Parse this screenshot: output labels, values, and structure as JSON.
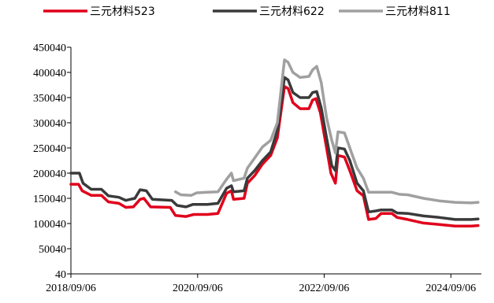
{
  "chart_data": {
    "type": "line",
    "title": "",
    "xlabel": "",
    "ylabel": "",
    "legend_position": "top",
    "grid": false,
    "ylim": [
      40,
      450040
    ],
    "yticks": [
      "40",
      "50040",
      "100040",
      "150040",
      "200040",
      "250040",
      "300040",
      "350040",
      "400040",
      "450040"
    ],
    "xlim": [
      "2018/09/06",
      "2025/03/01"
    ],
    "xticks": [
      "2018/09/06",
      "2020/09/06",
      "2022/09/06",
      "2024/09/06"
    ],
    "series": [
      {
        "name": "三元材料523",
        "color": "#e0001b",
        "points": [
          [
            "2018/09/06",
            178000
          ],
          [
            "2018/10/20",
            178000
          ],
          [
            "2018/11/10",
            165000
          ],
          [
            "2019/01/01",
            156000
          ],
          [
            "2019/03/01",
            156000
          ],
          [
            "2019/04/10",
            143000
          ],
          [
            "2019/06/10",
            140000
          ],
          [
            "2019/07/20",
            132000
          ],
          [
            "2019/09/01",
            133000
          ],
          [
            "2019/10/10",
            148000
          ],
          [
            "2019/11/01",
            150000
          ],
          [
            "2019/12/10",
            133000
          ],
          [
            "2020/04/01",
            132000
          ],
          [
            "2020/05/01",
            116000
          ],
          [
            "2020/07/01",
            114000
          ],
          [
            "2020/08/15",
            118000
          ],
          [
            "2020/11/01",
            118000
          ],
          [
            "2021/01/01",
            120000
          ],
          [
            "2021/02/20",
            160000
          ],
          [
            "2021/03/20",
            165000
          ],
          [
            "2021/04/01",
            148000
          ],
          [
            "2021/06/01",
            150000
          ],
          [
            "2021/06/20",
            180000
          ],
          [
            "2021/08/01",
            195000
          ],
          [
            "2021/09/15",
            218000
          ],
          [
            "2021/11/01",
            235000
          ],
          [
            "2021/12/10",
            270000
          ],
          [
            "2022/01/20",
            372000
          ],
          [
            "2022/02/10",
            368000
          ],
          [
            "2022/03/10",
            340000
          ],
          [
            "2022/04/20",
            328000
          ],
          [
            "2022/06/10",
            328000
          ],
          [
            "2022/07/01",
            345000
          ],
          [
            "2022/07/20",
            348000
          ],
          [
            "2022/08/15",
            320000
          ],
          [
            "2022/09/20",
            250000
          ],
          [
            "2022/10/15",
            200000
          ],
          [
            "2022/11/10",
            180000
          ],
          [
            "2022/11/25",
            235000
          ],
          [
            "2023/01/01",
            232000
          ],
          [
            "2023/02/01",
            205000
          ],
          [
            "2023/03/15",
            165000
          ],
          [
            "2023/04/20",
            155000
          ],
          [
            "2023/05/20",
            108000
          ],
          [
            "2023/07/01",
            110000
          ],
          [
            "2023/08/01",
            120000
          ],
          [
            "2023/10/01",
            120000
          ],
          [
            "2023/11/01",
            112000
          ],
          [
            "2024/01/01",
            108000
          ],
          [
            "2024/04/01",
            101000
          ],
          [
            "2024/07/01",
            98000
          ],
          [
            "2024/10/01",
            95000
          ],
          [
            "2025/01/01",
            95000
          ],
          [
            "2025/02/10",
            96000
          ]
        ]
      },
      {
        "name": "三元材料622",
        "color": "#3a3a3a",
        "points": [
          [
            "2018/09/06",
            200000
          ],
          [
            "2018/10/25",
            200000
          ],
          [
            "2018/11/15",
            180000
          ],
          [
            "2019/01/01",
            168000
          ],
          [
            "2019/03/01",
            168000
          ],
          [
            "2019/04/10",
            155000
          ],
          [
            "2019/06/10",
            152000
          ],
          [
            "2019/07/20",
            146000
          ],
          [
            "2019/09/10",
            150000
          ],
          [
            "2019/10/10",
            167000
          ],
          [
            "2019/11/15",
            165000
          ],
          [
            "2019/12/20",
            148000
          ],
          [
            "2020/04/10",
            146000
          ],
          [
            "2020/05/10",
            136000
          ],
          [
            "2020/07/01",
            133000
          ],
          [
            "2020/08/10",
            138000
          ],
          [
            "2020/11/01",
            138000
          ],
          [
            "2021/01/01",
            140000
          ],
          [
            "2021/02/20",
            170000
          ],
          [
            "2021/03/20",
            175000
          ],
          [
            "2021/04/01",
            163000
          ],
          [
            "2021/06/01",
            165000
          ],
          [
            "2021/06/20",
            190000
          ],
          [
            "2021/08/01",
            205000
          ],
          [
            "2021/09/15",
            225000
          ],
          [
            "2021/11/01",
            242000
          ],
          [
            "2021/12/10",
            285000
          ],
          [
            "2022/01/20",
            390000
          ],
          [
            "2022/02/10",
            385000
          ],
          [
            "2022/03/10",
            360000
          ],
          [
            "2022/04/20",
            350000
          ],
          [
            "2022/06/10",
            350000
          ],
          [
            "2022/07/01",
            360000
          ],
          [
            "2022/07/25",
            362000
          ],
          [
            "2022/08/20",
            330000
          ],
          [
            "2022/09/20",
            270000
          ],
          [
            "2022/10/20",
            215000
          ],
          [
            "2022/11/10",
            205000
          ],
          [
            "2022/11/25",
            250000
          ],
          [
            "2023/01/01",
            248000
          ],
          [
            "2023/02/01",
            225000
          ],
          [
            "2023/03/15",
            180000
          ],
          [
            "2023/04/20",
            165000
          ],
          [
            "2023/05/20",
            123000
          ],
          [
            "2023/07/01",
            125000
          ],
          [
            "2023/08/01",
            127000
          ],
          [
            "2023/10/01",
            127000
          ],
          [
            "2023/11/01",
            121000
          ],
          [
            "2024/01/01",
            120000
          ],
          [
            "2024/04/01",
            115000
          ],
          [
            "2024/07/01",
            112000
          ],
          [
            "2024/10/01",
            108000
          ],
          [
            "2025/01/01",
            108000
          ],
          [
            "2025/02/10",
            109000
          ]
        ]
      },
      {
        "name": "三元材料811",
        "color": "#a0a0a0",
        "points": [
          [
            "2020/05/01",
            163000
          ],
          [
            "2020/06/01",
            157000
          ],
          [
            "2020/08/01",
            156000
          ],
          [
            "2020/09/01",
            161000
          ],
          [
            "2020/11/01",
            162000
          ],
          [
            "2021/01/01",
            163000
          ],
          [
            "2021/02/20",
            188000
          ],
          [
            "2021/03/20",
            200000
          ],
          [
            "2021/04/01",
            185000
          ],
          [
            "2021/06/01",
            190000
          ],
          [
            "2021/06/20",
            210000
          ],
          [
            "2021/08/01",
            230000
          ],
          [
            "2021/09/15",
            252000
          ],
          [
            "2021/11/01",
            265000
          ],
          [
            "2021/12/10",
            300000
          ],
          [
            "2022/01/20",
            425000
          ],
          [
            "2022/02/10",
            420000
          ],
          [
            "2022/03/10",
            400000
          ],
          [
            "2022/04/20",
            390000
          ],
          [
            "2022/06/10",
            392000
          ],
          [
            "2022/07/01",
            405000
          ],
          [
            "2022/07/25",
            412000
          ],
          [
            "2022/08/20",
            380000
          ],
          [
            "2022/09/20",
            310000
          ],
          [
            "2022/10/20",
            265000
          ],
          [
            "2022/11/10",
            240000
          ],
          [
            "2022/11/25",
            282000
          ],
          [
            "2023/01/01",
            280000
          ],
          [
            "2023/02/01",
            250000
          ],
          [
            "2023/03/15",
            210000
          ],
          [
            "2023/04/20",
            190000
          ],
          [
            "2023/05/20",
            162000
          ],
          [
            "2023/07/01",
            162000
          ],
          [
            "2023/10/01",
            162000
          ],
          [
            "2023/11/15",
            158000
          ],
          [
            "2024/01/01",
            157000
          ],
          [
            "2024/04/01",
            150000
          ],
          [
            "2024/07/01",
            145000
          ],
          [
            "2024/10/01",
            142000
          ],
          [
            "2025/01/01",
            141000
          ],
          [
            "2025/02/10",
            142000
          ]
        ]
      }
    ]
  }
}
